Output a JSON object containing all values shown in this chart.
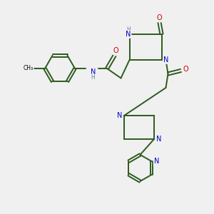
{
  "background_color": "#f0f0f0",
  "bond_color": "#2d5a1e",
  "atom_colors": {
    "N": "#0000cc",
    "O": "#cc0000",
    "C": "#000000",
    "H": "#708090"
  },
  "figsize": [
    3.0,
    3.0
  ],
  "dpi": 100
}
